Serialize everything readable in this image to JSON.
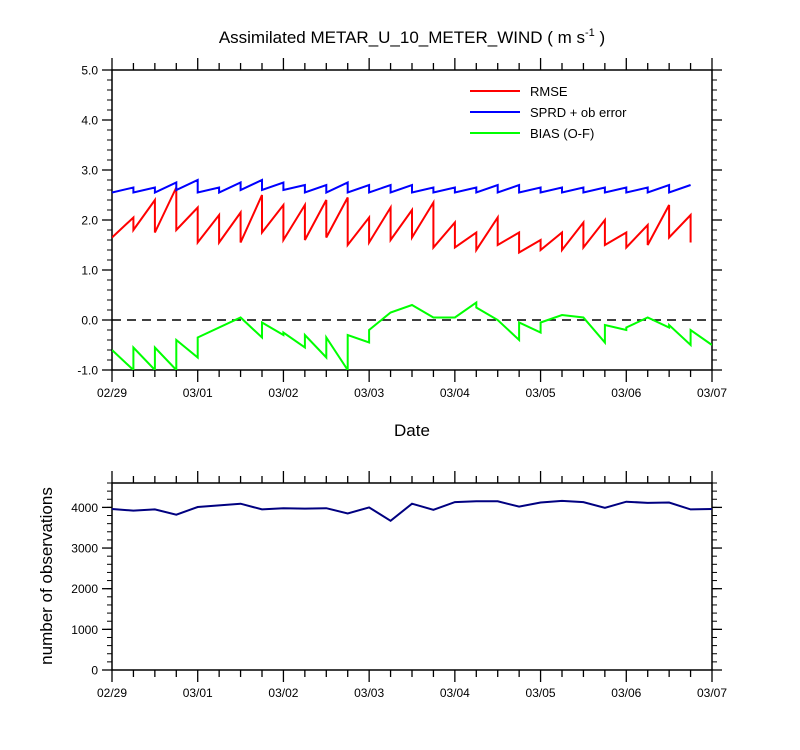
{
  "title_main": "Assimilated METAR_U_10_METER_WIND ( m s",
  "title_exp": "-1",
  "title_close": " )",
  "x_ticks": [
    "02/29",
    "03/01",
    "03/02",
    "03/03",
    "03/04",
    "03/05",
    "03/06",
    "03/07"
  ],
  "top_y_ticks": [
    "5.0",
    "4.0",
    "3.0",
    "2.0",
    "1.0",
    "0.0",
    "-1.0"
  ],
  "bottom_y_ticks": [
    "4000",
    "3000",
    "2000",
    "1000",
    "0"
  ],
  "colors": {
    "rmse": "#ff0000",
    "sprd": "#0000ff",
    "bias": "#00ff00",
    "obs": "#000080",
    "zero": "#000000"
  },
  "chart_data": [
    {
      "type": "line",
      "title": "Assimilated METAR_U_10_METER_WIND ( m s-1 )",
      "xlabel": "Date",
      "ylabel": "",
      "xlim": [
        0,
        7
      ],
      "ylim": [
        -1.0,
        5.0
      ],
      "legend_position": "top-right",
      "zero_line": true,
      "series": [
        {
          "name": "RMSE",
          "color": "#ff0000",
          "points": [
            [
              0,
              1.65
            ],
            [
              0.25,
              2.05
            ],
            [
              0.25,
              1.8
            ],
            [
              0.5,
              2.4
            ],
            [
              0.5,
              1.75
            ],
            [
              0.75,
              2.65
            ],
            [
              0.75,
              1.8
            ],
            [
              1,
              2.25
            ],
            [
              1,
              1.55
            ],
            [
              1.25,
              2.1
            ],
            [
              1.25,
              1.55
            ],
            [
              1.5,
              2.15
            ],
            [
              1.5,
              1.55
            ],
            [
              1.75,
              2.5
            ],
            [
              1.75,
              1.75
            ],
            [
              2,
              2.3
            ],
            [
              2,
              1.6
            ],
            [
              2.25,
              2.3
            ],
            [
              2.25,
              1.6
            ],
            [
              2.5,
              2.4
            ],
            [
              2.5,
              1.65
            ],
            [
              2.75,
              2.45
            ],
            [
              2.75,
              1.5
            ],
            [
              3,
              2.05
            ],
            [
              3,
              1.55
            ],
            [
              3.25,
              2.25
            ],
            [
              3.25,
              1.6
            ],
            [
              3.5,
              2.2
            ],
            [
              3.5,
              1.65
            ],
            [
              3.75,
              2.35
            ],
            [
              3.75,
              1.45
            ],
            [
              4,
              1.95
            ],
            [
              4,
              1.45
            ],
            [
              4.25,
              1.75
            ],
            [
              4.25,
              1.4
            ],
            [
              4.5,
              2.05
            ],
            [
              4.5,
              1.5
            ],
            [
              4.75,
              1.75
            ],
            [
              4.75,
              1.35
            ],
            [
              5,
              1.6
            ],
            [
              5,
              1.4
            ],
            [
              5.25,
              1.75
            ],
            [
              5.25,
              1.4
            ],
            [
              5.5,
              1.95
            ],
            [
              5.5,
              1.45
            ],
            [
              5.75,
              2.0
            ],
            [
              5.75,
              1.5
            ],
            [
              6,
              1.75
            ],
            [
              6,
              1.45
            ],
            [
              6.25,
              1.9
            ],
            [
              6.25,
              1.5
            ],
            [
              6.5,
              2.3
            ],
            [
              6.5,
              1.65
            ],
            [
              6.75,
              2.1
            ],
            [
              6.75,
              1.55
            ]
          ]
        },
        {
          "name": "SPRD + ob error",
          "color": "#0000ff",
          "points": [
            [
              0,
              2.55
            ],
            [
              0.25,
              2.65
            ],
            [
              0.25,
              2.55
            ],
            [
              0.5,
              2.65
            ],
            [
              0.5,
              2.55
            ],
            [
              0.75,
              2.75
            ],
            [
              0.75,
              2.6
            ],
            [
              1,
              2.8
            ],
            [
              1,
              2.55
            ],
            [
              1.25,
              2.65
            ],
            [
              1.25,
              2.55
            ],
            [
              1.5,
              2.75
            ],
            [
              1.5,
              2.6
            ],
            [
              1.75,
              2.8
            ],
            [
              1.75,
              2.6
            ],
            [
              2,
              2.75
            ],
            [
              2,
              2.6
            ],
            [
              2.25,
              2.7
            ],
            [
              2.25,
              2.55
            ],
            [
              2.5,
              2.7
            ],
            [
              2.5,
              2.55
            ],
            [
              2.75,
              2.75
            ],
            [
              2.75,
              2.55
            ],
            [
              3,
              2.7
            ],
            [
              3,
              2.55
            ],
            [
              3.25,
              2.7
            ],
            [
              3.25,
              2.55
            ],
            [
              3.5,
              2.7
            ],
            [
              3.5,
              2.55
            ],
            [
              3.75,
              2.65
            ],
            [
              3.75,
              2.55
            ],
            [
              4,
              2.65
            ],
            [
              4,
              2.55
            ],
            [
              4.25,
              2.65
            ],
            [
              4.25,
              2.55
            ],
            [
              4.5,
              2.7
            ],
            [
              4.5,
              2.55
            ],
            [
              4.75,
              2.7
            ],
            [
              4.75,
              2.55
            ],
            [
              5,
              2.65
            ],
            [
              5,
              2.55
            ],
            [
              5.25,
              2.65
            ],
            [
              5.25,
              2.55
            ],
            [
              5.5,
              2.65
            ],
            [
              5.5,
              2.55
            ],
            [
              5.75,
              2.65
            ],
            [
              5.75,
              2.55
            ],
            [
              6,
              2.65
            ],
            [
              6,
              2.55
            ],
            [
              6.25,
              2.65
            ],
            [
              6.25,
              2.55
            ],
            [
              6.5,
              2.7
            ],
            [
              6.5,
              2.55
            ],
            [
              6.75,
              2.7
            ]
          ]
        },
        {
          "name": "BIAS (O-F)",
          "color": "#00ff00",
          "points": [
            [
              0,
              -0.6
            ],
            [
              0.25,
              -1.0
            ],
            [
              0.25,
              -0.55
            ],
            [
              0.5,
              -1.0
            ],
            [
              0.5,
              -0.55
            ],
            [
              0.75,
              -1.0
            ],
            [
              0.75,
              -0.4
            ],
            [
              1,
              -0.75
            ],
            [
              1,
              -0.35
            ],
            [
              1.5,
              0.05
            ],
            [
              1.75,
              -0.35
            ],
            [
              1.75,
              -0.05
            ],
            [
              2,
              -0.3
            ],
            [
              2,
              -0.25
            ],
            [
              2.25,
              -0.55
            ],
            [
              2.25,
              -0.3
            ],
            [
              2.5,
              -0.75
            ],
            [
              2.5,
              -0.35
            ],
            [
              2.75,
              -1.0
            ],
            [
              2.75,
              -0.3
            ],
            [
              3,
              -0.45
            ],
            [
              3,
              -0.2
            ],
            [
              3.25,
              0.15
            ],
            [
              3.5,
              0.3
            ],
            [
              3.75,
              0.05
            ],
            [
              4,
              0.05
            ],
            [
              4.25,
              0.35
            ],
            [
              4.25,
              0.25
            ],
            [
              4.5,
              0.0
            ],
            [
              4.75,
              -0.4
            ],
            [
              4.75,
              -0.05
            ],
            [
              5,
              -0.25
            ],
            [
              5,
              -0.05
            ],
            [
              5.25,
              0.1
            ],
            [
              5.5,
              0.05
            ],
            [
              5.75,
              -0.45
            ],
            [
              5.75,
              -0.1
            ],
            [
              6,
              -0.2
            ],
            [
              6,
              -0.15
            ],
            [
              6.25,
              0.05
            ],
            [
              6.5,
              -0.15
            ],
            [
              6.5,
              -0.1
            ],
            [
              6.75,
              -0.5
            ],
            [
              6.75,
              -0.2
            ],
            [
              7,
              -0.5
            ]
          ]
        }
      ]
    },
    {
      "type": "line",
      "title": "",
      "xlabel": "",
      "ylabel": "number of observations",
      "xlim": [
        0,
        7
      ],
      "ylim": [
        0,
        4600
      ],
      "series": [
        {
          "name": "",
          "color": "#000080",
          "points": [
            [
              0,
              3960
            ],
            [
              0.25,
              3920
            ],
            [
              0.5,
              3950
            ],
            [
              0.75,
              3820
            ],
            [
              1,
              4010
            ],
            [
              1.25,
              4050
            ],
            [
              1.5,
              4090
            ],
            [
              1.75,
              3950
            ],
            [
              2,
              3980
            ],
            [
              2.25,
              3970
            ],
            [
              2.5,
              3980
            ],
            [
              2.75,
              3850
            ],
            [
              3,
              4000
            ],
            [
              3.25,
              3670
            ],
            [
              3.5,
              4090
            ],
            [
              3.75,
              3940
            ],
            [
              4,
              4130
            ],
            [
              4.25,
              4150
            ],
            [
              4.5,
              4150
            ],
            [
              4.75,
              4020
            ],
            [
              5,
              4120
            ],
            [
              5.25,
              4160
            ],
            [
              5.5,
              4130
            ],
            [
              5.75,
              3990
            ],
            [
              6,
              4140
            ],
            [
              6.25,
              4110
            ],
            [
              6.5,
              4120
            ],
            [
              6.75,
              3950
            ],
            [
              7,
              3960
            ]
          ]
        }
      ]
    }
  ]
}
